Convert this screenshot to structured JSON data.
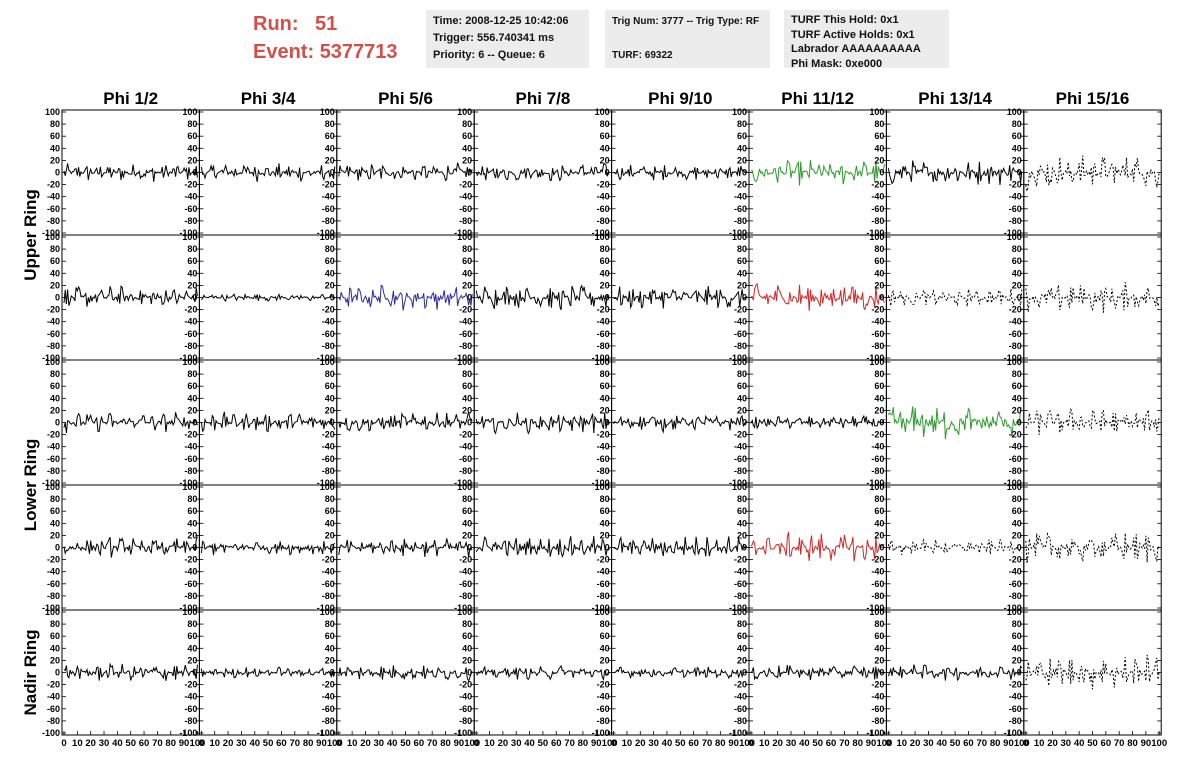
{
  "header": {
    "run_label": "Run:",
    "run_value": "51",
    "event_label": "Event:",
    "event_value": "5377713",
    "time": "Time: 2008-12-25 10:42:06",
    "trigger": "Trigger: 556.740341 ms",
    "priority": "Priority: 6 -- Queue: 6",
    "trig_num": "Trig Num: 3777 -- Trig Type: RF",
    "turf": "TURF: 69322",
    "turf_hold": "TURF This Hold: 0x1",
    "turf_active": "TURF Active Holds: 0x1",
    "labrador": "Labrador AAAAAAAAAA",
    "phi_mask": "Phi Mask: 0xe000"
  },
  "chart_data": {
    "type": "line",
    "columns": [
      "Phi 1/2",
      "Phi 3/4",
      "Phi 5/6",
      "Phi 7/8",
      "Phi 9/10",
      "Phi 11/12",
      "Phi 13/14",
      "Phi 15/16"
    ],
    "ring_labels": [
      {
        "text": "Upper Ring",
        "rows": [
          0,
          1
        ]
      },
      {
        "text": "Lower Ring",
        "rows": [
          2,
          3
        ]
      },
      {
        "text": "Nadir Ring",
        "rows": [
          4
        ]
      }
    ],
    "y_ticks": [
      "-100",
      "-80",
      "-60",
      "-40",
      "-20",
      "0",
      "20",
      "40",
      "60",
      "80",
      "100"
    ],
    "x_ticks": [
      "0",
      "10",
      "20",
      "30",
      "40",
      "50",
      "60",
      "70",
      "80",
      "90",
      "100"
    ],
    "xlim": [
      0,
      100
    ],
    "ylim": [
      -100,
      100
    ],
    "series_colors": {
      "normal": "#000000",
      "green": "#2f9a2f",
      "red": "#cc2a2a",
      "blue": "#2b2f95"
    },
    "panels": [
      [
        {
          "color": "normal",
          "amp": 16,
          "dash": false
        },
        {
          "color": "normal",
          "amp": 16,
          "dash": false
        },
        {
          "color": "normal",
          "amp": 17,
          "dash": false
        },
        {
          "color": "normal",
          "amp": 16,
          "dash": false
        },
        {
          "color": "normal",
          "amp": 14,
          "dash": false
        },
        {
          "color": "green",
          "amp": 22,
          "dash": false
        },
        {
          "color": "normal",
          "amp": 22,
          "dash": false
        },
        {
          "color": "normal",
          "amp": 32,
          "dash": true
        }
      ],
      [
        {
          "color": "normal",
          "amp": 20,
          "dash": false
        },
        {
          "color": "normal",
          "amp": 7,
          "dash": false
        },
        {
          "color": "blue",
          "amp": 22,
          "dash": false
        },
        {
          "color": "normal",
          "amp": 22,
          "dash": false
        },
        {
          "color": "normal",
          "amp": 20,
          "dash": false
        },
        {
          "color": "red",
          "amp": 25,
          "dash": false
        },
        {
          "color": "normal",
          "amp": 16,
          "dash": true
        },
        {
          "color": "normal",
          "amp": 26,
          "dash": true
        }
      ],
      [
        {
          "color": "normal",
          "amp": 18,
          "dash": false
        },
        {
          "color": "normal",
          "amp": 18,
          "dash": false
        },
        {
          "color": "normal",
          "amp": 18,
          "dash": false
        },
        {
          "color": "normal",
          "amp": 18,
          "dash": false
        },
        {
          "color": "normal",
          "amp": 16,
          "dash": false
        },
        {
          "color": "normal",
          "amp": 12,
          "dash": false
        },
        {
          "color": "green",
          "amp": 32,
          "dash": false
        },
        {
          "color": "normal",
          "amp": 24,
          "dash": true
        }
      ],
      [
        {
          "color": "normal",
          "amp": 18,
          "dash": false
        },
        {
          "color": "normal",
          "amp": 14,
          "dash": false
        },
        {
          "color": "normal",
          "amp": 16,
          "dash": false
        },
        {
          "color": "normal",
          "amp": 20,
          "dash": false
        },
        {
          "color": "normal",
          "amp": 20,
          "dash": false
        },
        {
          "color": "red",
          "amp": 26,
          "dash": false
        },
        {
          "color": "normal",
          "amp": 14,
          "dash": true
        },
        {
          "color": "normal",
          "amp": 28,
          "dash": true
        }
      ],
      [
        {
          "color": "normal",
          "amp": 16,
          "dash": false
        },
        {
          "color": "normal",
          "amp": 10,
          "dash": false
        },
        {
          "color": "normal",
          "amp": 14,
          "dash": false
        },
        {
          "color": "normal",
          "amp": 12,
          "dash": false
        },
        {
          "color": "normal",
          "amp": 10,
          "dash": false
        },
        {
          "color": "normal",
          "amp": 14,
          "dash": false
        },
        {
          "color": "normal",
          "amp": 14,
          "dash": false
        },
        {
          "color": "normal",
          "amp": 30,
          "dash": true
        }
      ]
    ]
  }
}
